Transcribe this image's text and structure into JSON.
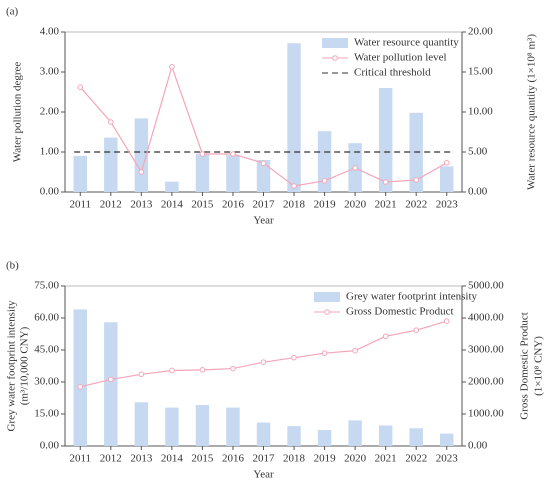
{
  "chart_data": [
    {
      "type": "combo",
      "label": "(a)",
      "xlabel": "Year",
      "ylabel": [
        "Water pollution degree"
      ],
      "y2label": [
        "Water resource quantity (1×10⁸ m³)"
      ],
      "categories": [
        "2011",
        "2012",
        "2013",
        "2014",
        "2015",
        "2016",
        "2017",
        "2018",
        "2019",
        "2020",
        "2021",
        "2022",
        "2023"
      ],
      "series": [
        {
          "name": "Water resource quantity",
          "type": "bar",
          "axis": "y2",
          "color": "#c6d9f1",
          "values": [
            4.5,
            6.8,
            9.2,
            1.3,
            4.8,
            4.6,
            4.0,
            18.6,
            7.6,
            6.1,
            13.0,
            9.9,
            3.2
          ]
        },
        {
          "name": "Water pollution level",
          "type": "line",
          "axis": "y",
          "color": "#f4a6b8",
          "values": [
            2.62,
            1.75,
            0.5,
            3.13,
            0.95,
            0.95,
            0.72,
            0.15,
            0.28,
            0.6,
            0.25,
            0.3,
            0.73
          ]
        }
      ],
      "threshold": {
        "name": "Critical threshold",
        "value": 1,
        "color": "#333333"
      },
      "ylim": [
        0,
        4
      ],
      "yticks": [
        {
          "value": 0,
          "label": "0.00"
        },
        {
          "value": 1,
          "label": "1.00"
        },
        {
          "value": 2,
          "label": "2.00"
        },
        {
          "value": 3,
          "label": "3.00"
        },
        {
          "value": 4,
          "label": "4.00"
        }
      ],
      "y2lim": [
        0,
        20
      ],
      "y2ticks": [
        {
          "value": 0,
          "label": "0.00"
        },
        {
          "value": 5,
          "label": "5.00"
        },
        {
          "value": 10,
          "label": "10.00"
        },
        {
          "value": 15,
          "label": "15.00"
        },
        {
          "value": 20,
          "label": "20.00"
        }
      ],
      "legend": "upper right"
    },
    {
      "type": "combo",
      "label": "(b)",
      "xlabel": "Year",
      "ylabel": [
        "Grey water footprint intensity",
        "(m³/10,000 CNY)"
      ],
      "y2label": [
        "Gross Domestic Product",
        "(1×10⁸ CNY)"
      ],
      "categories": [
        "2011",
        "2012",
        "2013",
        "2014",
        "2015",
        "2016",
        "2017",
        "2018",
        "2019",
        "2020",
        "2021",
        "2022",
        "2023"
      ],
      "series": [
        {
          "name": "Grey water footprint intensity",
          "type": "bar",
          "axis": "y",
          "color": "#c6d9f1",
          "values": [
            64,
            58,
            20.5,
            18,
            19.2,
            18,
            11,
            9.3,
            7.5,
            12,
            9.6,
            8.3,
            5.8
          ]
        },
        {
          "name": "Gross Domestic Product",
          "type": "line",
          "axis": "y2",
          "color": "#f4a6b8",
          "values": [
            1850,
            2080,
            2240,
            2360,
            2380,
            2420,
            2620,
            2760,
            2900,
            2980,
            3430,
            3620,
            3900
          ]
        }
      ],
      "ylim": [
        0,
        75
      ],
      "yticks": [
        {
          "value": 0,
          "label": "0.00"
        },
        {
          "value": 15,
          "label": "15.00"
        },
        {
          "value": 30,
          "label": "30.00"
        },
        {
          "value": 45,
          "label": "45.00"
        },
        {
          "value": 60,
          "label": "60.00"
        },
        {
          "value": 75,
          "label": "75.00"
        }
      ],
      "y2lim": [
        0,
        5000
      ],
      "y2ticks": [
        {
          "value": 0,
          "label": "0.00"
        },
        {
          "value": 1000,
          "label": "1000.00"
        },
        {
          "value": 2000,
          "label": "2000.00"
        },
        {
          "value": 3000,
          "label": "3000.00"
        },
        {
          "value": 4000,
          "label": "4000.00"
        },
        {
          "value": 5000,
          "label": "5000.00"
        }
      ],
      "legend": "upper right"
    }
  ]
}
